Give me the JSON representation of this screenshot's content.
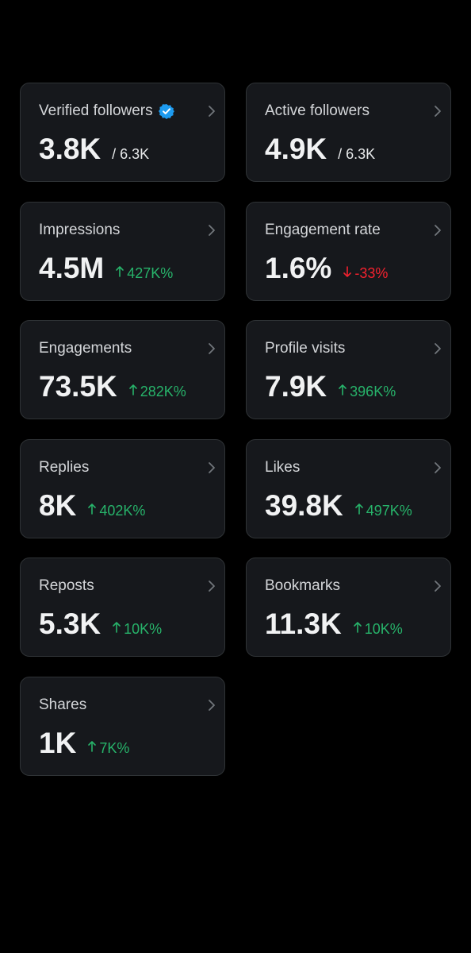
{
  "cards": [
    {
      "label": "Verified followers",
      "verified": true,
      "value": "3.8K",
      "sub": "/ 6.3K"
    },
    {
      "label": "Active followers",
      "value": "4.9K",
      "sub": "/ 6.3K"
    },
    {
      "label": "Impressions",
      "value": "4.5M",
      "change": "427K%",
      "trend": "up"
    },
    {
      "label": "Engagement rate",
      "value": "1.6%",
      "change": "-33%",
      "trend": "down"
    },
    {
      "label": "Engagements",
      "value": "73.5K",
      "change": "282K%",
      "trend": "up"
    },
    {
      "label": "Profile visits",
      "value": "7.9K",
      "change": "396K%",
      "trend": "up"
    },
    {
      "label": "Replies",
      "value": "8K",
      "change": "402K%",
      "trend": "up"
    },
    {
      "label": "Likes",
      "value": "39.8K",
      "change": "497K%",
      "trend": "up"
    },
    {
      "label": "Reposts",
      "value": "5.3K",
      "change": "10K%",
      "trend": "up"
    },
    {
      "label": "Bookmarks",
      "value": "11.3K",
      "change": "10K%",
      "trend": "up"
    },
    {
      "label": "Shares",
      "value": "1K",
      "change": "7K%",
      "trend": "up"
    }
  ]
}
